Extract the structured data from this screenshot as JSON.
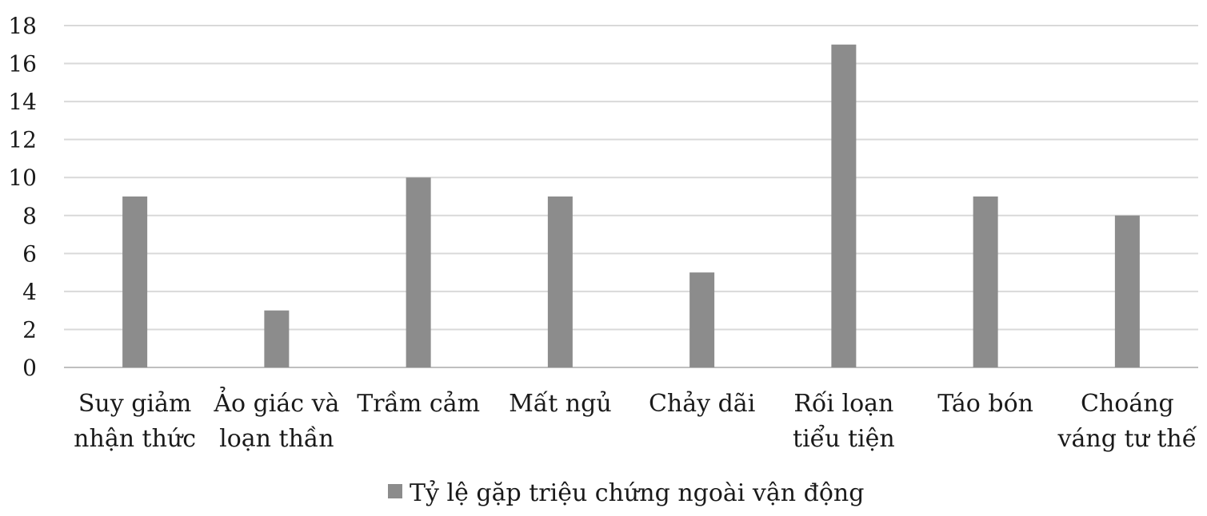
{
  "chart_data": {
    "type": "bar",
    "categories": [
      [
        "Suy giảm",
        "nhận thức"
      ],
      [
        "Ảo giác và",
        "loạn thần"
      ],
      [
        "Trầm cảm"
      ],
      [
        "Mất ngủ"
      ],
      [
        "Chảy dãi"
      ],
      [
        "Rối loạn",
        "tiểu tiện"
      ],
      [
        "Táo bón"
      ],
      [
        "Choáng",
        "váng tư thế"
      ]
    ],
    "series": [
      {
        "name": "Tỷ lệ gặp triệu chứng ngoài vận động",
        "values": [
          9,
          3,
          10,
          9,
          5,
          17,
          9,
          8
        ],
        "color": "#8c8c8c"
      }
    ],
    "ylim": [
      0,
      18
    ],
    "yticks": [
      "0",
      "2",
      "4",
      "6",
      "8",
      "10",
      "12",
      "14",
      "16",
      "18"
    ],
    "grid": true,
    "legend": "bottom-center"
  }
}
